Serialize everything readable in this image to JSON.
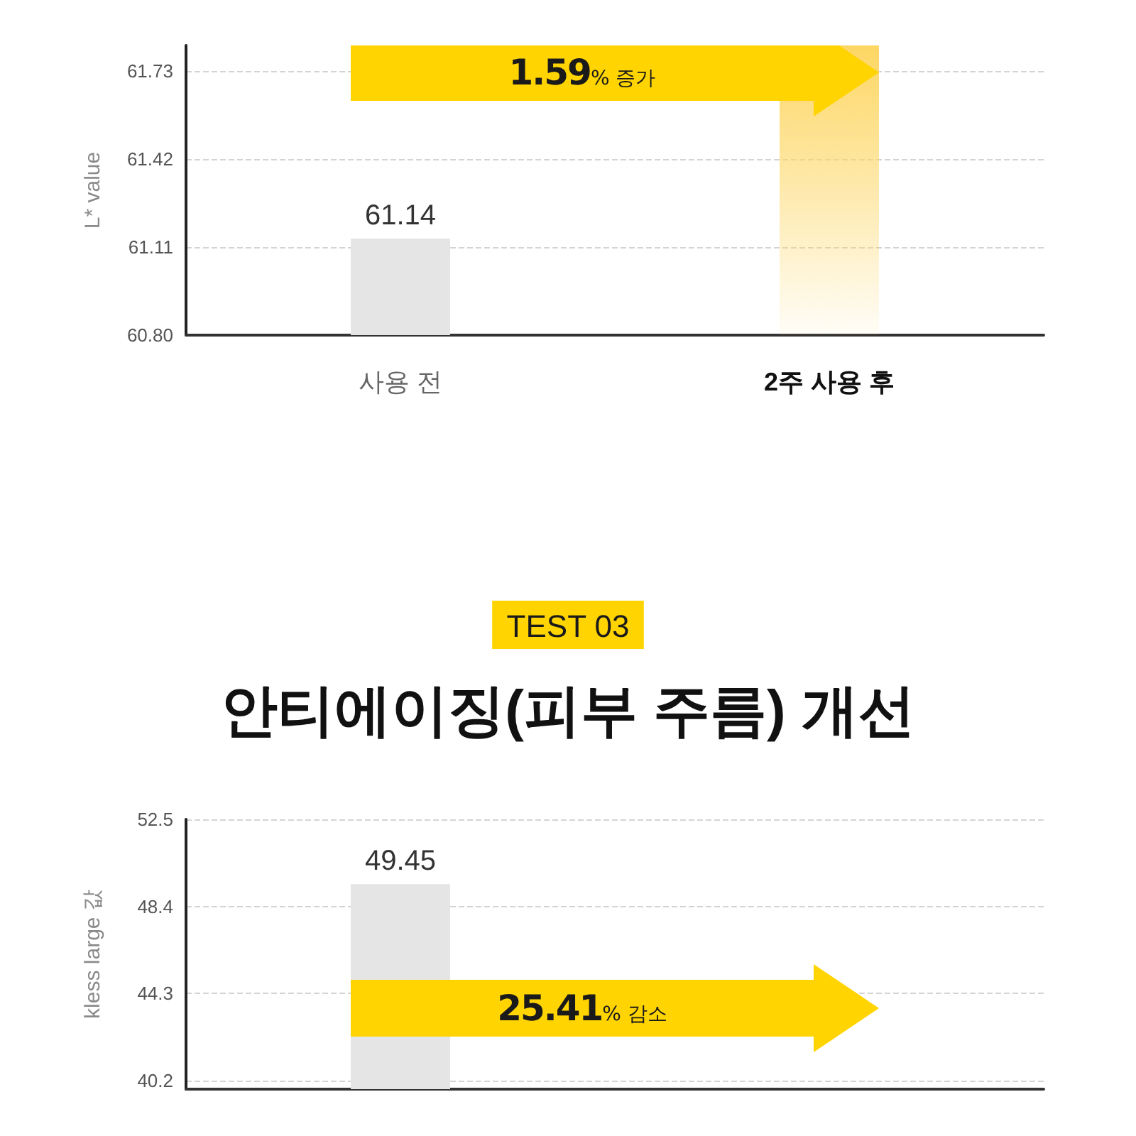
{
  "chart_data": [
    {
      "type": "bar",
      "ylabel": "L* value",
      "categories": [
        "사용 전",
        "2주 사용 후"
      ],
      "values": [
        61.14,
        61.82
      ],
      "colors": [
        "#e5e5e5",
        "#fdd663"
      ],
      "value_labels": [
        "61.14",
        null
      ],
      "ylim": [
        60.8,
        61.82
      ],
      "yticks": [
        {
          "value": 60.8,
          "label": "60.80"
        },
        61.11,
        61.42,
        61.73
      ],
      "grid": "y",
      "annotations": [
        "1.59% 증가"
      ]
    },
    {
      "type": "bar",
      "title": "안티에이징(피부 주름) 개선",
      "subtitle": "TEST 03",
      "ylabel": "kless large 값",
      "categories": [
        null,
        null
      ],
      "values": [
        49.45,
        null
      ],
      "colors": [
        "#e5e5e5",
        null
      ],
      "value_labels": [
        "49.45",
        null
      ],
      "ylim": [
        39.8,
        52.5
      ],
      "yticks": [
        40.2,
        44.3,
        48.4,
        52.5
      ],
      "grid": "y",
      "tick_labels": "y",
      "annotations": [
        "25.41% 감소"
      ]
    }
  ]
}
